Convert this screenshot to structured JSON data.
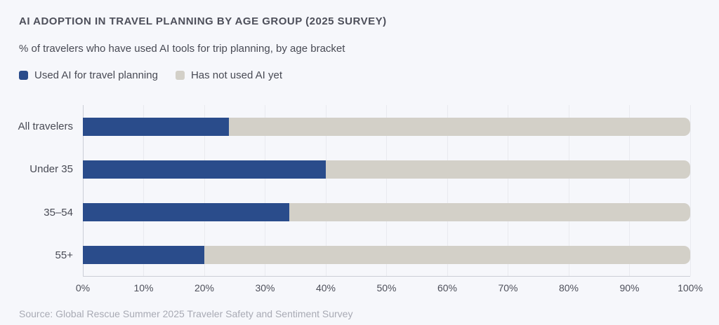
{
  "header": {
    "title": "AI ADOPTION IN TRAVEL PLANNING BY AGE GROUP (2025 SURVEY)",
    "subtitle": "% of travelers who have used AI tools for trip planning, by age bracket"
  },
  "legend": {
    "items": [
      {
        "name": "used-ai",
        "label": "Used AI for travel planning",
        "color": "#2A4C8B"
      },
      {
        "name": "not-used-ai",
        "label": "Has not used AI yet",
        "color": "#D3D0C8"
      }
    ]
  },
  "chart_data": {
    "type": "bar",
    "orientation": "horizontal",
    "stacked": true,
    "title": "AI ADOPTION IN TRAVEL PLANNING BY AGE GROUP (2025 SURVEY)",
    "subtitle": "% of travelers who have used AI tools for trip planning, by age bracket",
    "categories": [
      "All travelers",
      "Under 35",
      "35–54",
      "55+"
    ],
    "series": [
      {
        "name": "Used AI for travel planning",
        "color": "#2A4C8B",
        "values": [
          24,
          40,
          34,
          20
        ]
      },
      {
        "name": "Has not used AI yet",
        "color": "#D3D0C8",
        "values": [
          76,
          60,
          66,
          80
        ]
      }
    ],
    "xlabel": "",
    "ylabel": "",
    "x_axis": {
      "min": 0,
      "max": 100,
      "tick_step": 10,
      "ticks": [
        "0%",
        "10%",
        "20%",
        "30%",
        "40%",
        "50%",
        "60%",
        "70%",
        "80%",
        "90%",
        "100%"
      ]
    },
    "grid": true,
    "legend_position": "top-left"
  },
  "footer": {
    "source": "Source: Global Rescue Summer 2025 Traveler Safety and Sentiment Survey"
  },
  "colors": {
    "background": "#F6F7FB",
    "used_ai": "#2A4C8B",
    "not_used_ai": "#D3D0C8",
    "gridline": "#E9EAEF",
    "axis_line": "#CBCED6",
    "text": "#484A54",
    "muted_text": "#A8AAB4"
  }
}
